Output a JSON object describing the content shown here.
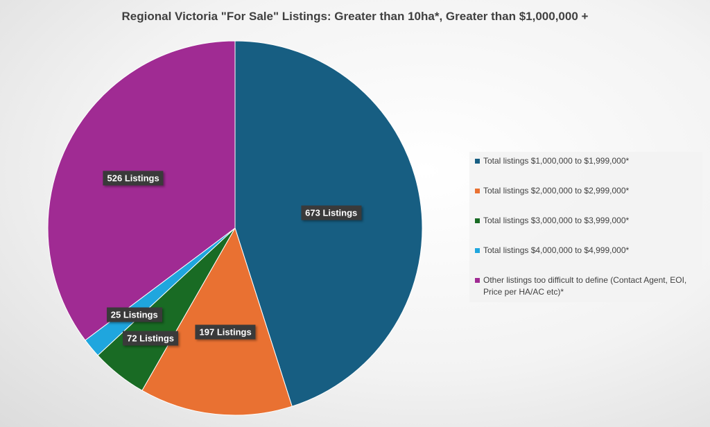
{
  "chart_data": {
    "type": "pie",
    "title": "Regional Victoria \"For Sale\" Listings: Greater than 10ha*, Greater than $1,000,000 +",
    "legend_position": "right",
    "data_label_suffix": " Listings",
    "slices": [
      {
        "name": "Total listings $1,000,000 to $1,999,000*",
        "value": 673,
        "color": "#175e82"
      },
      {
        "name": "Total listings $2,000,000 to $2,999,000*",
        "value": 197,
        "color": "#e97132"
      },
      {
        "name": "Total listings $3,000,000 to $3,999,000*",
        "value": 72,
        "color": "#196b24"
      },
      {
        "name": "Total listings $4,000,000 to $4,999,000*",
        "value": 25,
        "color": "#1fa6de"
      },
      {
        "name": "Other listings too difficult to define (Contact Agent, EOI, Price per HA/AC etc)*",
        "value": 526,
        "color": "#a02b93"
      }
    ]
  }
}
